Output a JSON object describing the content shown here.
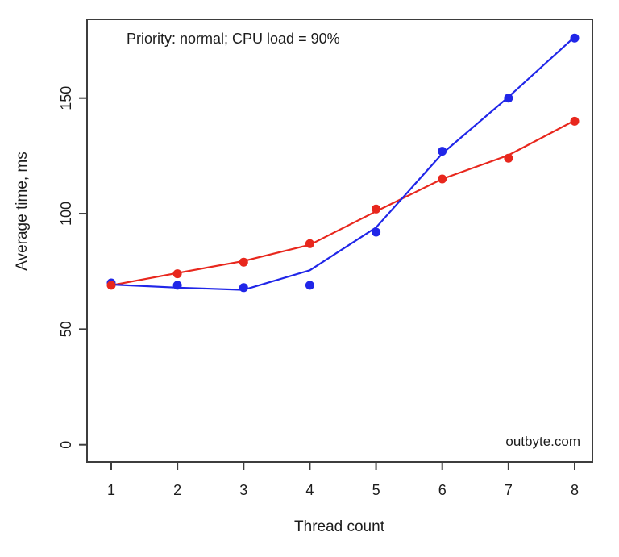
{
  "page": {
    "background": "#ffffff",
    "frame_color": "#3d3d3d",
    "text_color": "#1c1c1c"
  },
  "chart_data": {
    "type": "scatter",
    "title": "",
    "annotation": "Priority: normal; CPU load = 90%",
    "watermark": "outbyte.com",
    "xlabel": "Thread count",
    "ylabel": "Average time, ms",
    "x": [
      1,
      2,
      3,
      4,
      5,
      6,
      7,
      8
    ],
    "x_ticks": [
      1,
      2,
      3,
      4,
      5,
      6,
      7,
      8
    ],
    "y_ticks": [
      0,
      50,
      100,
      150
    ],
    "xlim": [
      0.64,
      8.27
    ],
    "ylim": [
      -7.5,
      187.5
    ],
    "grid": false,
    "legend": "none",
    "marker_radius": 5.5,
    "line_width": 2.2,
    "series": [
      {
        "name": "red-series",
        "color": "#e8271d",
        "marker": "circle",
        "points": [
          69,
          74,
          79,
          87,
          102,
          115,
          124,
          140
        ],
        "trend_line": [
          69,
          74.3,
          79.5,
          86.5,
          101,
          115,
          125.3,
          140.3
        ]
      },
      {
        "name": "blue-series",
        "color": "#2026e8",
        "marker": "circle",
        "points": [
          70,
          69,
          68,
          69,
          92,
          127,
          150,
          176
        ],
        "trend_line": [
          69.3,
          68,
          67,
          75.5,
          94,
          126,
          150.5,
          176.5
        ]
      }
    ]
  }
}
